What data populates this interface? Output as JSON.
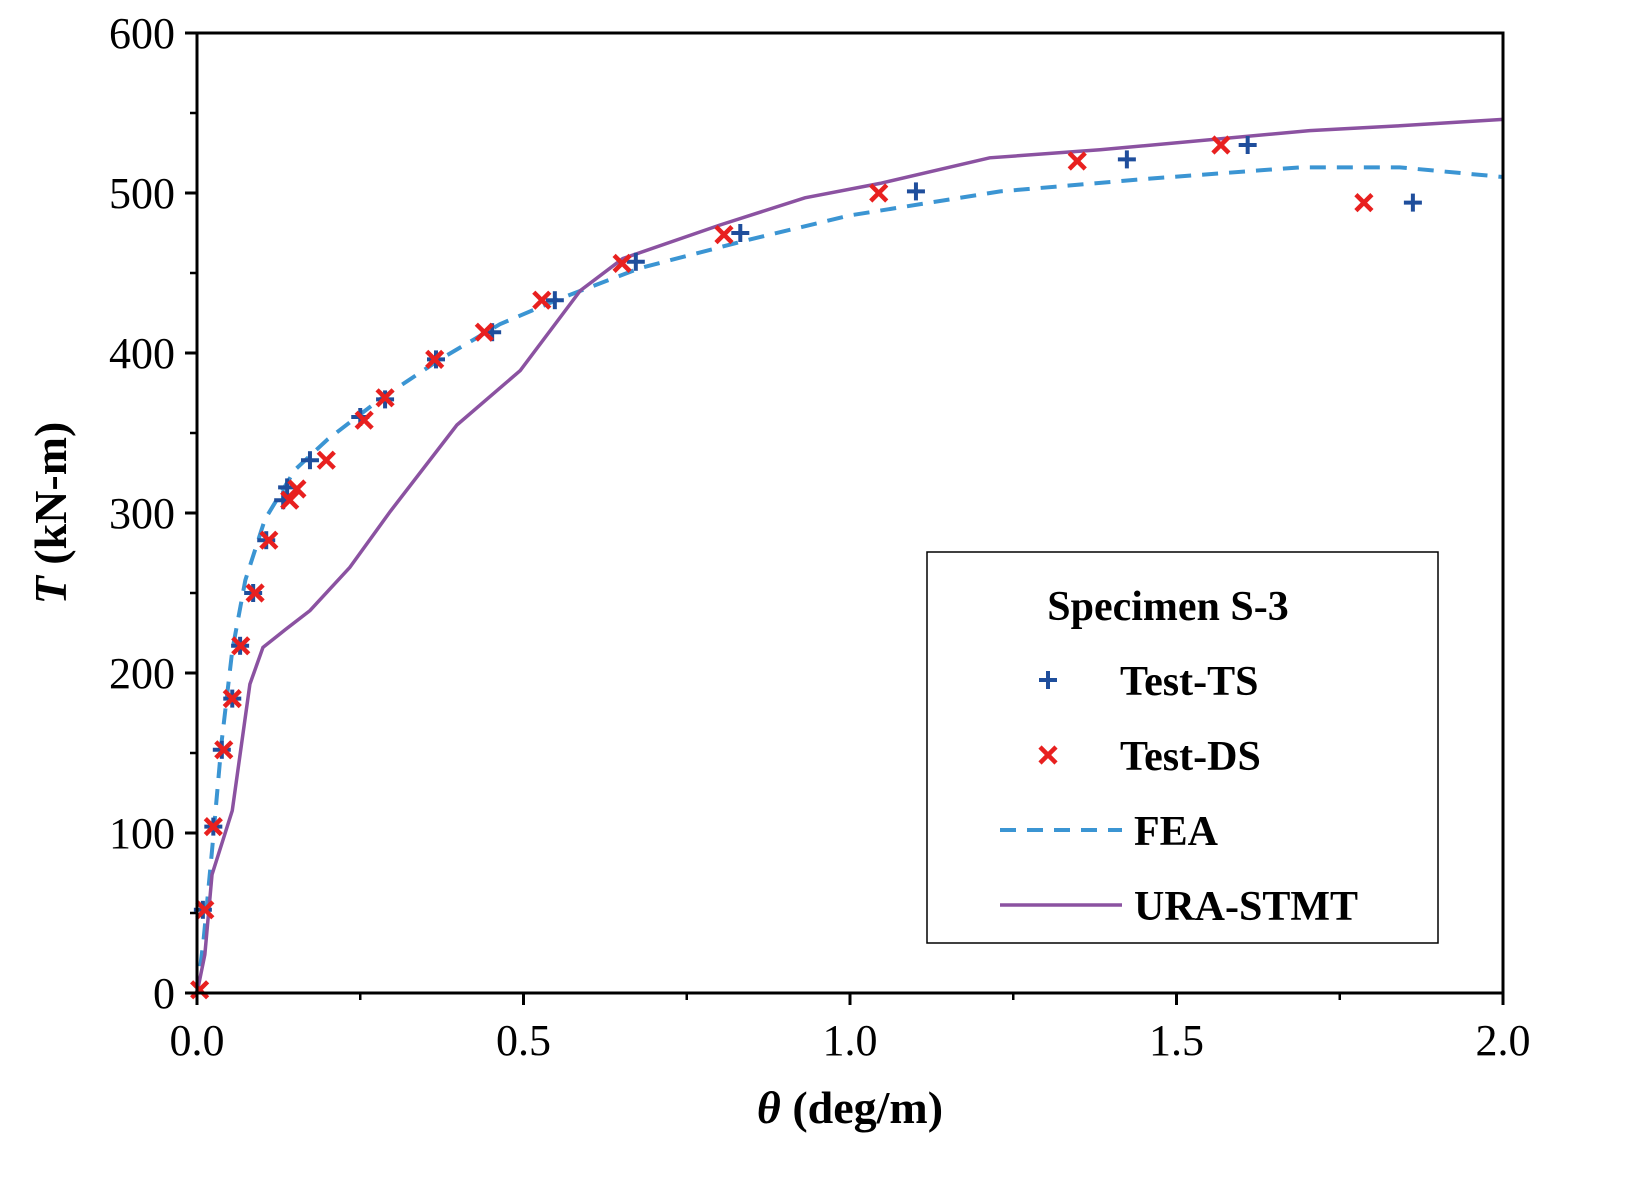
{
  "chart_data": {
    "type": "scatter",
    "title": "",
    "xlabel_symbol": "θ",
    "xlabel_unit": " (deg/m)",
    "ylabel_symbol": "T",
    "ylabel_unit": " (kN-m)",
    "xlim": [
      0,
      2.0
    ],
    "ylim": [
      0,
      600
    ],
    "xticks": [
      0,
      0.5,
      1.0,
      1.5,
      2.0
    ],
    "xtick_labels": [
      "0.0",
      "0.5",
      "1.0",
      "1.5",
      "2.0"
    ],
    "yticks": [
      0,
      100,
      200,
      300,
      400,
      500,
      600
    ],
    "ytick_labels": [
      "0",
      "100",
      "200",
      "300",
      "400",
      "500",
      "600"
    ],
    "grid": false,
    "legend": {
      "title": "Specimen S-3",
      "placement": "bottom-right"
    },
    "series": [
      {
        "name": "Test-TS",
        "kind": "marker-plus",
        "color": "#1f4e9c",
        "x": [
          0.009,
          0.025,
          0.038,
          0.054,
          0.066,
          0.086,
          0.106,
          0.132,
          0.138,
          0.173,
          0.25,
          0.288,
          0.366,
          0.452,
          0.548,
          0.672,
          0.832,
          1.101,
          1.424,
          1.609,
          1.862
        ],
        "y": [
          52,
          104,
          152,
          184,
          217,
          250,
          283,
          308,
          316,
          333,
          360,
          371,
          396,
          413,
          433,
          457,
          475,
          501,
          521,
          530,
          494
        ]
      },
      {
        "name": "Test-DS",
        "kind": "marker-x",
        "color": "#e8201f",
        "x": [
          0.004,
          0.012,
          0.025,
          0.041,
          0.054,
          0.067,
          0.089,
          0.11,
          0.142,
          0.153,
          0.198,
          0.256,
          0.288,
          0.364,
          0.44,
          0.528,
          0.651,
          0.807,
          1.044,
          1.348,
          1.568,
          1.787
        ],
        "y": [
          2,
          52,
          104,
          152,
          184,
          217,
          250,
          283,
          308,
          315,
          333,
          358,
          372,
          396,
          413,
          433,
          456,
          474,
          500,
          520,
          530,
          494
        ]
      },
      {
        "name": "FEA",
        "kind": "dashed-line",
        "color": "#3b95d3",
        "x": [
          0,
          0.01,
          0.023,
          0.038,
          0.054,
          0.074,
          0.104,
          0.15,
          0.2,
          0.28,
          0.372,
          0.464,
          0.556,
          0.678,
          0.847,
          1.0,
          1.23,
          1.459,
          1.689,
          1.842,
          2.0
        ],
        "y": [
          0,
          33,
          89,
          158,
          214,
          258,
          296,
          327,
          346,
          371,
          396,
          418,
          434,
          453,
          471,
          486,
          501,
          509,
          516,
          516,
          510
        ]
      },
      {
        "name": "URA-STMT",
        "kind": "solid-line",
        "color": "#8b52a1",
        "x": [
          0,
          0.012,
          0.023,
          0.054,
          0.081,
          0.101,
          0.135,
          0.173,
          0.234,
          0.296,
          0.398,
          0.495,
          0.587,
          0.652,
          0.801,
          0.931,
          1.046,
          1.214,
          1.383,
          1.704,
          1.842,
          2.0
        ],
        "y": [
          0,
          24,
          74,
          114,
          193,
          216,
          227,
          239,
          266,
          301,
          355,
          389,
          439,
          459,
          480,
          497,
          506,
          522,
          527,
          539,
          542,
          546
        ]
      }
    ]
  }
}
